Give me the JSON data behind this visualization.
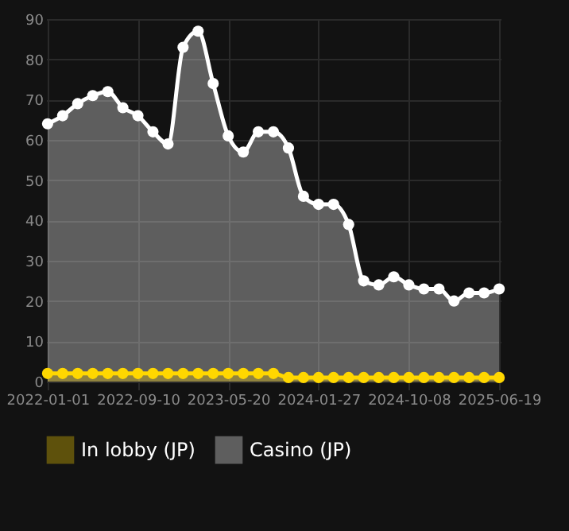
{
  "chart_data": {
    "type": "area",
    "categories": [
      "2022-01-01",
      null,
      null,
      null,
      null,
      null,
      "2022-09-10",
      null,
      null,
      null,
      null,
      null,
      "2023-05-20",
      null,
      null,
      null,
      null,
      null,
      "2024-01-27",
      null,
      null,
      null,
      null,
      null,
      "2024-10-08",
      null,
      null,
      null,
      null,
      null,
      "2025-06-19"
    ],
    "series": [
      {
        "name": "In lobby (JP)",
        "color": "#ffd700",
        "values": [
          2,
          2,
          2,
          2,
          2,
          2,
          2,
          2,
          2,
          2,
          2,
          2,
          2,
          2,
          2,
          2,
          1,
          1,
          1,
          1,
          1,
          1,
          1,
          1,
          1,
          1,
          1,
          1,
          1,
          1,
          1
        ]
      },
      {
        "name": "Casino (JP)",
        "color": "#ffffff",
        "values": [
          64,
          66,
          69,
          71,
          72,
          68,
          66,
          62,
          59,
          83,
          87,
          74,
          61,
          57,
          62,
          62,
          58,
          46,
          44,
          44,
          39,
          25,
          24,
          26,
          24,
          23,
          23,
          20,
          22,
          22,
          23
        ]
      }
    ],
    "ylim": [
      0,
      90
    ],
    "yticks": [
      0,
      10,
      20,
      30,
      40,
      50,
      60,
      70,
      80,
      90
    ],
    "grid": true,
    "legend": "bottom",
    "marker": "circle"
  }
}
